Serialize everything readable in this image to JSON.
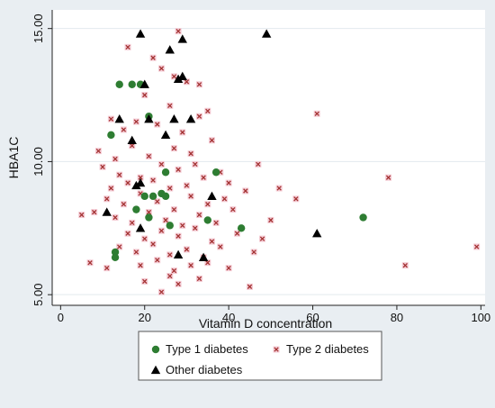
{
  "chart_data": {
    "type": "scatter",
    "title": "",
    "xlabel": "Vitamin D concentration",
    "ylabel": "HBA1C",
    "xlim": [
      -2,
      101
    ],
    "ylim": [
      4.6,
      15.7
    ],
    "x_ticks": [
      0,
      20,
      40,
      60,
      80,
      100
    ],
    "y_ticks": [
      5,
      10,
      15
    ],
    "x_tick_labels": [
      "0",
      "20",
      "40",
      "60",
      "80",
      "100"
    ],
    "y_tick_labels": [
      "5.00",
      "10.00",
      "15.00"
    ],
    "grid": "horizontal",
    "legend_position": "bottom",
    "colors": {
      "page_background": "#e9eef2",
      "plot_background": "#ffffff",
      "grid": "#e3e9ee",
      "type1": "#2e7d32",
      "type2": "#a33232",
      "type2_halo": "#f3c5cf",
      "other": "#000000"
    },
    "series": [
      {
        "name": "Type 1 diabetes",
        "marker": "circle",
        "points": [
          [
            14,
            12.9
          ],
          [
            17,
            12.9
          ],
          [
            19,
            12.9
          ],
          [
            21,
            11.7
          ],
          [
            12,
            11.0
          ],
          [
            25,
            9.6
          ],
          [
            37,
            9.6
          ],
          [
            20,
            8.7
          ],
          [
            22,
            8.7
          ],
          [
            24,
            8.8
          ],
          [
            25,
            8.7
          ],
          [
            18,
            8.2
          ],
          [
            21,
            7.9
          ],
          [
            26,
            7.6
          ],
          [
            35,
            7.8
          ],
          [
            43,
            7.5
          ],
          [
            72,
            7.9
          ],
          [
            13,
            6.6
          ],
          [
            13,
            6.4
          ]
        ]
      },
      {
        "name": "Type 2 diabetes",
        "marker": "x",
        "points": [
          [
            16,
            14.3
          ],
          [
            22,
            13.9
          ],
          [
            24,
            13.5
          ],
          [
            27,
            13.2
          ],
          [
            28,
            14.9
          ],
          [
            30,
            13.0
          ],
          [
            33,
            12.9
          ],
          [
            20,
            12.5
          ],
          [
            26,
            12.1
          ],
          [
            12,
            11.6
          ],
          [
            15,
            11.2
          ],
          [
            18,
            11.5
          ],
          [
            23,
            11.4
          ],
          [
            29,
            11.1
          ],
          [
            33,
            11.7
          ],
          [
            35,
            11.9
          ],
          [
            61,
            11.8
          ],
          [
            9,
            10.4
          ],
          [
            13,
            10.1
          ],
          [
            17,
            10.6
          ],
          [
            21,
            10.2
          ],
          [
            27,
            10.5
          ],
          [
            31,
            10.3
          ],
          [
            36,
            10.8
          ],
          [
            10,
            9.8
          ],
          [
            14,
            9.5
          ],
          [
            19,
            9.4
          ],
          [
            24,
            9.9
          ],
          [
            28,
            9.7
          ],
          [
            32,
            9.9
          ],
          [
            38,
            9.6
          ],
          [
            47,
            9.9
          ],
          [
            78,
            9.4
          ],
          [
            12,
            9.0
          ],
          [
            16,
            9.2
          ],
          [
            22,
            9.3
          ],
          [
            26,
            9.0
          ],
          [
            30,
            9.1
          ],
          [
            34,
            9.4
          ],
          [
            40,
            9.2
          ],
          [
            52,
            9.0
          ],
          [
            11,
            8.6
          ],
          [
            15,
            8.4
          ],
          [
            19,
            8.8
          ],
          [
            23,
            8.5
          ],
          [
            27,
            8.2
          ],
          [
            31,
            8.7
          ],
          [
            35,
            8.4
          ],
          [
            39,
            8.6
          ],
          [
            44,
            8.9
          ],
          [
            56,
            8.6
          ],
          [
            8,
            8.1
          ],
          [
            13,
            7.9
          ],
          [
            17,
            7.7
          ],
          [
            21,
            8.1
          ],
          [
            25,
            7.8
          ],
          [
            29,
            7.6
          ],
          [
            33,
            8.0
          ],
          [
            37,
            7.7
          ],
          [
            41,
            8.2
          ],
          [
            50,
            7.8
          ],
          [
            5,
            8.0
          ],
          [
            16,
            7.3
          ],
          [
            20,
            7.1
          ],
          [
            24,
            7.4
          ],
          [
            28,
            7.2
          ],
          [
            32,
            7.5
          ],
          [
            36,
            7.0
          ],
          [
            42,
            7.3
          ],
          [
            48,
            7.1
          ],
          [
            14,
            6.8
          ],
          [
            18,
            6.6
          ],
          [
            22,
            6.9
          ],
          [
            26,
            6.5
          ],
          [
            30,
            6.7
          ],
          [
            34,
            6.4
          ],
          [
            38,
            6.8
          ],
          [
            46,
            6.6
          ],
          [
            99,
            6.8
          ],
          [
            7,
            6.2
          ],
          [
            11,
            6.0
          ],
          [
            19,
            6.1
          ],
          [
            23,
            6.3
          ],
          [
            27,
            5.9
          ],
          [
            31,
            6.1
          ],
          [
            35,
            6.2
          ],
          [
            40,
            6.0
          ],
          [
            82,
            6.1
          ],
          [
            20,
            5.5
          ],
          [
            26,
            5.7
          ],
          [
            33,
            5.6
          ],
          [
            45,
            5.3
          ],
          [
            24,
            5.1
          ],
          [
            28,
            5.4
          ]
        ]
      },
      {
        "name": "Other diabetes",
        "marker": "triangle",
        "points": [
          [
            19,
            14.8
          ],
          [
            29,
            14.6
          ],
          [
            49,
            14.8
          ],
          [
            26,
            14.2
          ],
          [
            28,
            13.1
          ],
          [
            29,
            13.2
          ],
          [
            20,
            12.9
          ],
          [
            14,
            11.6
          ],
          [
            21,
            11.6
          ],
          [
            27,
            11.6
          ],
          [
            31,
            11.6
          ],
          [
            25,
            11.0
          ],
          [
            17,
            10.8
          ],
          [
            19,
            9.2
          ],
          [
            18,
            9.1
          ],
          [
            36,
            8.7
          ],
          [
            11,
            8.1
          ],
          [
            19,
            7.5
          ],
          [
            61,
            7.3
          ],
          [
            28,
            6.5
          ],
          [
            34,
            6.4
          ]
        ]
      }
    ]
  }
}
